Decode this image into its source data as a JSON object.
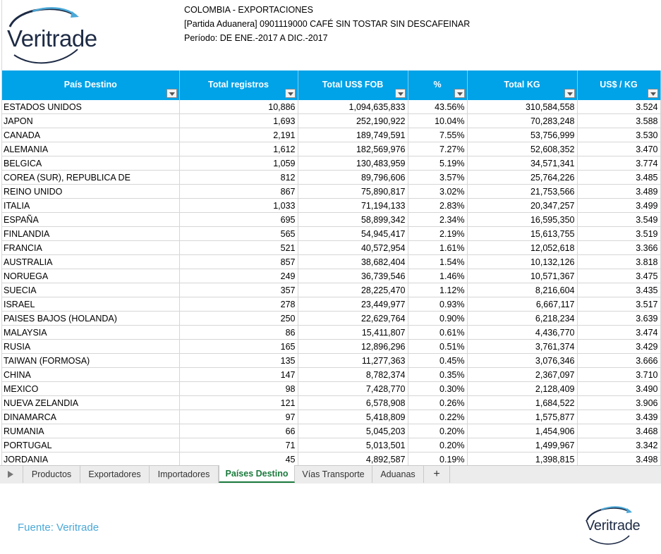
{
  "logo": {
    "brand": "Veritrade"
  },
  "header": {
    "line1": "COLOMBIA - EXPORTACIONES",
    "line2": "[Partida Aduanera] 0901119000 CAFÉ SIN TOSTAR SIN DESCAFEINAR",
    "line3": "Período: DE ENE.-2017 A DIC.-2017"
  },
  "columns": [
    "País Destino",
    "Total registros",
    "Total US$ FOB",
    "%",
    "Total KG",
    "US$ / KG"
  ],
  "rows": [
    [
      "ESTADOS UNIDOS",
      "10,886",
      "1,094,635,833",
      "43.56%",
      "310,584,558",
      "3.524"
    ],
    [
      "JAPON",
      "1,693",
      "252,190,922",
      "10.04%",
      "70,283,248",
      "3.588"
    ],
    [
      "CANADA",
      "2,191",
      "189,749,591",
      "7.55%",
      "53,756,999",
      "3.530"
    ],
    [
      "ALEMANIA",
      "1,612",
      "182,569,976",
      "7.27%",
      "52,608,352",
      "3.470"
    ],
    [
      "BELGICA",
      "1,059",
      "130,483,959",
      "5.19%",
      "34,571,341",
      "3.774"
    ],
    [
      "COREA (SUR), REPUBLICA DE",
      "812",
      "89,796,606",
      "3.57%",
      "25,764,226",
      "3.485"
    ],
    [
      "REINO UNIDO",
      "867",
      "75,890,817",
      "3.02%",
      "21,753,566",
      "3.489"
    ],
    [
      "ITALIA",
      "1,033",
      "71,194,133",
      "2.83%",
      "20,347,257",
      "3.499"
    ],
    [
      "ESPAÑA",
      "695",
      "58,899,342",
      "2.34%",
      "16,595,350",
      "3.549"
    ],
    [
      "FINLANDIA",
      "565",
      "54,945,417",
      "2.19%",
      "15,613,755",
      "3.519"
    ],
    [
      "FRANCIA",
      "521",
      "40,572,954",
      "1.61%",
      "12,052,618",
      "3.366"
    ],
    [
      "AUSTRALIA",
      "857",
      "38,682,404",
      "1.54%",
      "10,132,126",
      "3.818"
    ],
    [
      "NORUEGA",
      "249",
      "36,739,546",
      "1.46%",
      "10,571,367",
      "3.475"
    ],
    [
      "SUECIA",
      "357",
      "28,225,470",
      "1.12%",
      "8,216,604",
      "3.435"
    ],
    [
      "ISRAEL",
      "278",
      "23,449,977",
      "0.93%",
      "6,667,117",
      "3.517"
    ],
    [
      "PAISES BAJOS (HOLANDA)",
      "250",
      "22,629,764",
      "0.90%",
      "6,218,234",
      "3.639"
    ],
    [
      "MALAYSIA",
      "86",
      "15,411,807",
      "0.61%",
      "4,436,770",
      "3.474"
    ],
    [
      "RUSIA",
      "165",
      "12,896,296",
      "0.51%",
      "3,761,374",
      "3.429"
    ],
    [
      "TAIWAN (FORMOSA)",
      "135",
      "11,277,363",
      "0.45%",
      "3,076,346",
      "3.666"
    ],
    [
      "CHINA",
      "147",
      "8,782,374",
      "0.35%",
      "2,367,097",
      "3.710"
    ],
    [
      "MEXICO",
      "98",
      "7,428,770",
      "0.30%",
      "2,128,409",
      "3.490"
    ],
    [
      "NUEVA ZELANDIA",
      "121",
      "6,578,908",
      "0.26%",
      "1,684,522",
      "3.906"
    ],
    [
      "DINAMARCA",
      "97",
      "5,418,809",
      "0.22%",
      "1,575,877",
      "3.439"
    ],
    [
      "RUMANIA",
      "66",
      "5,045,203",
      "0.20%",
      "1,454,906",
      "3.468"
    ],
    [
      "PORTUGAL",
      "71",
      "5,013,501",
      "0.20%",
      "1,499,967",
      "3.342"
    ],
    [
      "JORDANIA",
      "45",
      "4,892,587",
      "0.19%",
      "1,398,815",
      "3.498"
    ]
  ],
  "tabs": [
    "Productos",
    "Exportadores",
    "Importadores",
    "Países Destino",
    "Vías Transporte",
    "Aduanas",
    "+"
  ],
  "active_tab": "Países Destino",
  "footer": {
    "source": "Fuente: Veritrade"
  },
  "colors": {
    "header_bg": "#00a2e8",
    "active_tab": "#1a7a3c",
    "brand_dark": "#1e2b45",
    "brand_light": "#4aa8d8"
  },
  "icons": {
    "filter": "chevron-down-icon",
    "sheet_nav": "play-icon",
    "add_sheet": "plus-icon"
  }
}
